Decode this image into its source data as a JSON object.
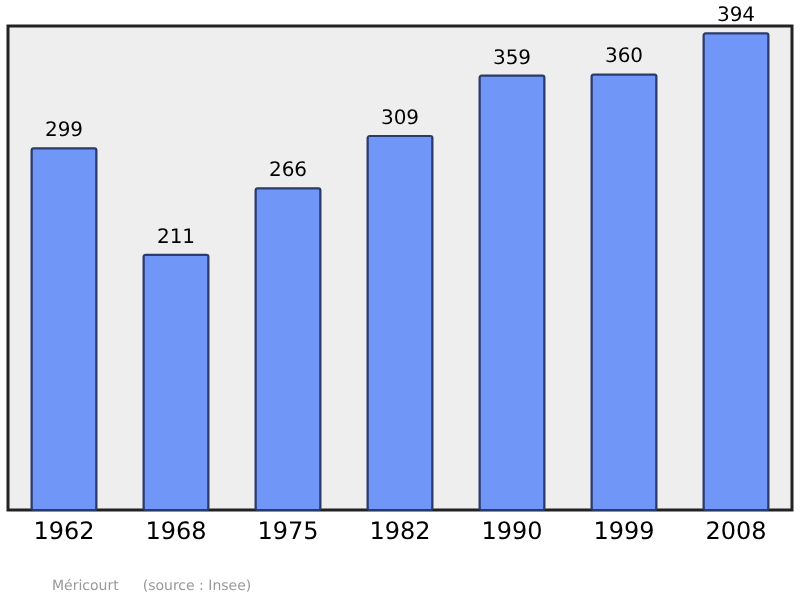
{
  "chart_data": {
    "type": "bar",
    "categories": [
      "1962",
      "1968",
      "1975",
      "1982",
      "1990",
      "1999",
      "2008"
    ],
    "values": [
      299,
      211,
      266,
      309,
      359,
      360,
      394
    ],
    "color": "#7096f8",
    "data_labels": true,
    "annotations": [
      "Méricourt",
      "(source : Insee)"
    ]
  }
}
